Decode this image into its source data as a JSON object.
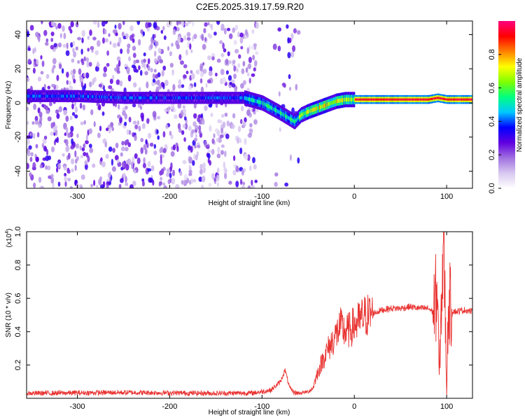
{
  "title": "C2E5.2025.319.17.59.R20",
  "chart_data": [
    {
      "type": "heatmap",
      "xlabel": "Height of straight line (km)",
      "ylabel": "Frequency (Hz)",
      "xlim": [
        -355,
        128
      ],
      "ylim": [
        -50,
        48
      ],
      "xticks": [
        -300,
        -200,
        -100,
        0,
        100
      ],
      "yticks": [
        -40,
        -20,
        0,
        20,
        40
      ],
      "colorbar": {
        "label": "Normalized spectral amplitude",
        "range": [
          0,
          1
        ],
        "ticks": [
          "0.0",
          "0.2",
          "0.4",
          "0.6",
          "0.8"
        ],
        "tick_values": [
          0.0,
          0.2,
          0.4,
          0.6,
          0.8
        ],
        "colors": [
          "#ffffff",
          "#d8c8f0",
          "#a070e0",
          "#6000e0",
          "#0000ff",
          "#00c8ff",
          "#00ff80",
          "#80ff00",
          "#ffff00",
          "#ff8000",
          "#ff0000",
          "#ff0080"
        ]
      },
      "ridge": {
        "x": [
          -355,
          -300,
          -250,
          -200,
          -150,
          -120,
          -100,
          -80,
          -65,
          -58,
          -50,
          -40,
          -30,
          -20,
          -10,
          0,
          20,
          50,
          80,
          90,
          100,
          128
        ],
        "y": [
          4,
          4,
          3,
          3,
          3,
          3,
          0,
          -6,
          -11,
          -7,
          -5,
          -3,
          -1,
          1,
          2,
          2,
          2,
          2,
          2,
          3,
          2,
          2
        ]
      }
    },
    {
      "type": "line",
      "xlabel": "Height of straight line (km)",
      "ylabel": "SNR (10 * v/v)",
      "y_multiplier": "(x10",
      "y_exponent": "4",
      "y_multiplier_close": ")",
      "xlim": [
        -355,
        128
      ],
      "ylim": [
        0,
        10000
      ],
      "xticks": [
        -300,
        -200,
        -100,
        0,
        100
      ],
      "yticks": [
        2000,
        4000,
        6000,
        8000,
        10000
      ],
      "ytick_labels": [
        "0.2",
        "0.4",
        "0.6",
        "0.8",
        "1.0"
      ],
      "series": [
        {
          "color": "#e8312f",
          "x": [
            -355,
            -250,
            -150,
            -110,
            -100,
            -90,
            -80,
            -75,
            -70,
            -65,
            -60,
            -55,
            -50,
            -45,
            -40,
            -35,
            -30,
            -25,
            -20,
            -15,
            -10,
            -5,
            0,
            5,
            10,
            20,
            30,
            40,
            50,
            60,
            70,
            80,
            85,
            90,
            92,
            95,
            97,
            100,
            102,
            105,
            110,
            120,
            128
          ],
          "y": [
            300,
            350,
            300,
            320,
            400,
            500,
            1000,
            1700,
            600,
            350,
            300,
            350,
            400,
            600,
            1500,
            2200,
            2800,
            3300,
            3800,
            4300,
            4000,
            4100,
            4400,
            4600,
            4900,
            5100,
            5300,
            5400,
            5400,
            5500,
            5400,
            5400,
            5200,
            6500,
            1200,
            7000,
            9800,
            300,
            6000,
            5300,
            5200,
            5300,
            5200
          ]
        }
      ]
    }
  ]
}
